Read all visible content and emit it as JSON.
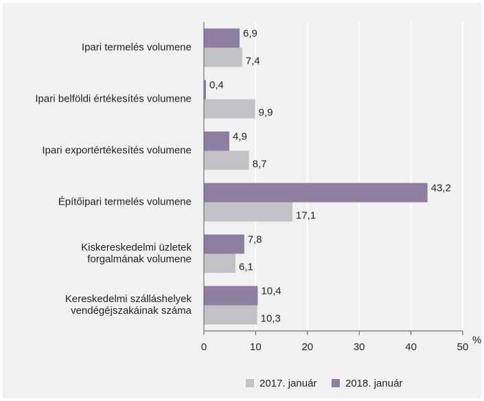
{
  "chart_data": {
    "type": "hbar",
    "categories": [
      "Ipari termelés volumene",
      "Ipari belföldi értékesítés volumene",
      "Ipari exportértékesítés volumene",
      "Építőipari termelés volumene",
      "Kiskereskedelmi üzletek\nforgalmának volumene",
      "Kereskedelmi szálláshelyek\nvendégéjszakáinak száma"
    ],
    "series": [
      {
        "name": "2017. január",
        "color": "#c2c2c6",
        "values": [
          7.4,
          9.9,
          8.7,
          17.1,
          6.1,
          10.3
        ],
        "value_labels": [
          "7,4",
          "9,9",
          "8,7",
          "17,1",
          "6,1",
          "10,3"
        ]
      },
      {
        "name": "2018. január",
        "color": "#8d7f9f",
        "values": [
          6.9,
          0.4,
          4.9,
          43.2,
          7.8,
          10.4
        ],
        "value_labels": [
          "6,9",
          "0,4",
          "4,9",
          "43,2",
          "7,8",
          "10,4"
        ]
      }
    ],
    "xlim": [
      0,
      50
    ],
    "xticks": [
      0,
      10,
      20,
      30,
      40,
      50
    ],
    "xlabel": "%",
    "grid": true
  }
}
